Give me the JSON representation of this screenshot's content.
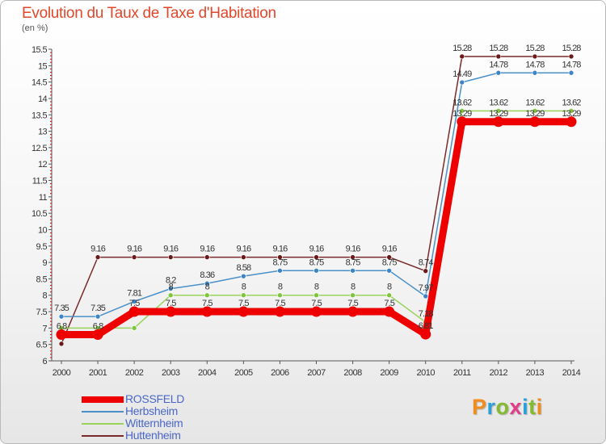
{
  "header": {
    "title": "Evolution du Taux de Taxe d'Habitation",
    "unit": "(en %)"
  },
  "logo": {
    "text": "Proxiti",
    "letter_colors": [
      "#f28c1d",
      "#2aa0d8",
      "#84bb2e",
      "#e43c8a",
      "#2aa0d8",
      "#84bb2e",
      "#f28c1d"
    ]
  },
  "chart_data": {
    "type": "line",
    "x": [
      2000,
      2001,
      2002,
      2003,
      2004,
      2005,
      2006,
      2007,
      2008,
      2009,
      2010,
      2011,
      2012,
      2013,
      2014
    ],
    "ylim": [
      6,
      15.5
    ],
    "yticks": [
      "6",
      "6.5",
      "7",
      "7.5",
      "8",
      "8.5",
      "9",
      "9.5",
      "10",
      "10.5",
      "11",
      "11.5",
      "12",
      "12.5",
      "13",
      "13.5",
      "14",
      "14.5",
      "15",
      "15.5"
    ],
    "grid": false,
    "legend_position": "bottom-left",
    "series": [
      {
        "name": "Huttenheim",
        "color": "#7a2a2a",
        "marker": "#6b1a1a",
        "values": [
          6.52,
          9.16,
          9.16,
          9.16,
          9.16,
          9.16,
          9.16,
          9.16,
          9.16,
          9.16,
          8.74,
          15.28,
          15.28,
          15.28,
          15.28
        ],
        "labels": [
          "",
          "9.16",
          "9.16",
          "9.16",
          "9.16",
          "9.16",
          "9.16",
          "9.16",
          "9.16",
          "9.16",
          "8.74",
          "15.28",
          "15.28",
          "15.28",
          "15.28"
        ]
      },
      {
        "name": "Herbsheim",
        "color": "#4a90c8",
        "marker": "#3d85c6",
        "values": [
          7.35,
          7.35,
          7.81,
          8.2,
          8.36,
          8.58,
          8.75,
          8.75,
          8.75,
          8.75,
          7.97,
          14.49,
          14.78,
          14.78,
          14.78
        ],
        "labels": [
          "7.35",
          "7.35",
          "7.81",
          "8.2",
          "8.36",
          "8.58",
          "8.75",
          "8.75",
          "8.75",
          "8.75",
          "7.97",
          "14.49",
          "14.78",
          "14.78",
          "14.78"
        ]
      },
      {
        "name": "Witternheim",
        "color": "#9ad35a",
        "marker": "#7ec43c",
        "values": [
          7,
          7,
          7,
          8,
          8,
          8,
          8,
          8,
          8,
          8,
          7.18,
          13.62,
          13.62,
          13.62,
          13.62
        ],
        "labels": [
          "",
          "",
          "",
          "8",
          "8",
          "8",
          "8",
          "8",
          "8",
          "8",
          "7.18",
          "13.62",
          "13.62",
          "13.62",
          "13.62"
        ]
      },
      {
        "name": "ROSSFELD",
        "color": "#ee0000",
        "marker": "#ee0000",
        "values": [
          6.8,
          6.8,
          7.5,
          7.5,
          7.5,
          7.5,
          7.5,
          7.5,
          7.5,
          7.5,
          6.81,
          13.29,
          13.29,
          13.29,
          13.29
        ],
        "labels": [
          "6.8",
          "6.8",
          "7.5",
          "7.5",
          "7.5",
          "7.5",
          "7.5",
          "7.5",
          "7.5",
          "7.5",
          "6.81",
          "13.29",
          "13.29",
          "13.29",
          "13.29"
        ]
      }
    ],
    "legend": [
      {
        "name": "ROSSFELD",
        "color": "#ee0000"
      },
      {
        "name": "Herbsheim",
        "color": "#4a90c8"
      },
      {
        "name": "Witternheim",
        "color": "#9ad35a"
      },
      {
        "name": "Huttenheim",
        "color": "#7a2a2a"
      }
    ]
  }
}
